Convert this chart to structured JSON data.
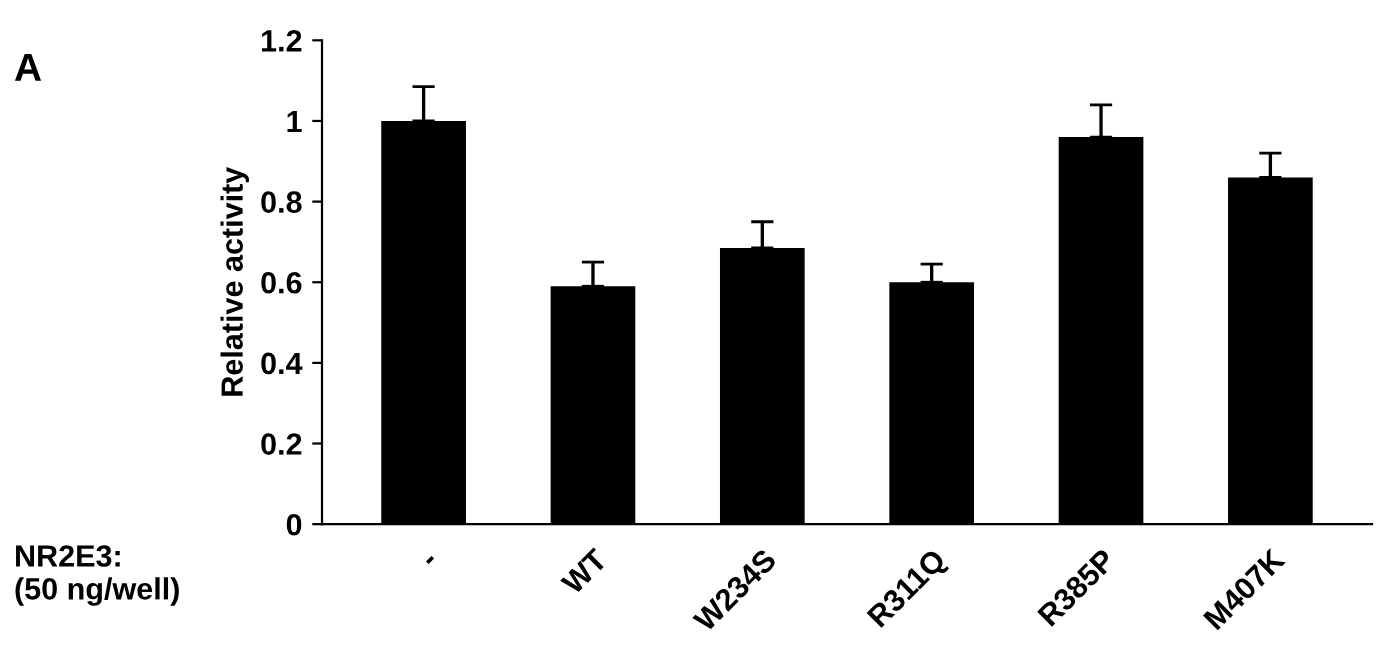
{
  "chart_data": {
    "type": "bar",
    "ylabel": "Relative activity",
    "xlabel": "NR2E3:\n(50 ng/well)",
    "annotations": [
      "A"
    ],
    "categories": [
      "-",
      "WT",
      "W234S",
      "R311Q",
      "R385P",
      "M407K"
    ],
    "values": [
      1.0,
      0.59,
      0.685,
      0.6,
      0.96,
      0.86
    ],
    "errors": [
      [
        1.0,
        1.085
      ],
      [
        0.59,
        0.65
      ],
      [
        0.685,
        0.75
      ],
      [
        0.6,
        0.645
      ],
      [
        0.96,
        1.04
      ],
      [
        0.86,
        0.92
      ]
    ],
    "color": "#000000",
    "ylim": [
      0,
      1.2
    ],
    "yticks": [
      0,
      0.2,
      0.4,
      0.6,
      0.8,
      1,
      1.2
    ],
    "grid": false,
    "legend": false
  }
}
